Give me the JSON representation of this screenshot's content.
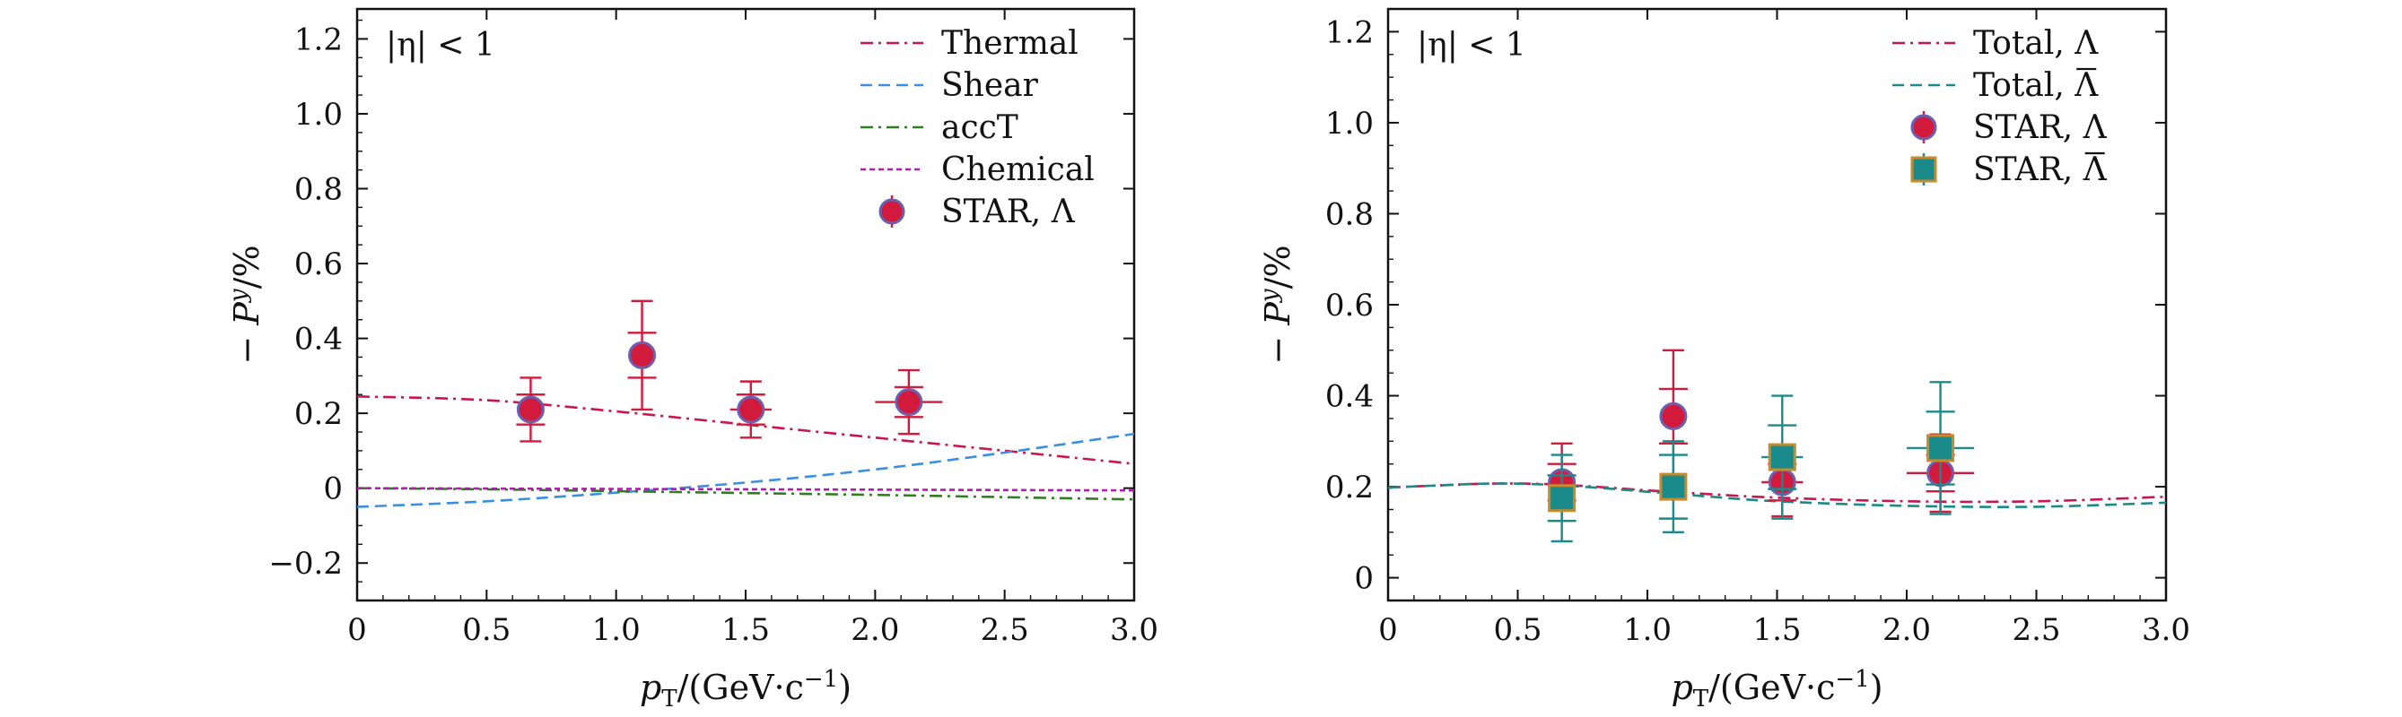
{
  "chart_data": [
    {
      "type": "line",
      "panel": "left",
      "xlabel": "p_T/(GeV·c^-1)",
      "ylabel": "-P^y/%",
      "annotation": "|η| < 1",
      "xlim": [
        0,
        3.0
      ],
      "ylim": [
        -0.3,
        1.28
      ],
      "xticks": [
        0,
        0.5,
        1.0,
        1.5,
        2.0,
        2.5,
        3.0
      ],
      "xtick_labels": [
        "0",
        "0.5",
        "1.0",
        "1.5",
        "2.0",
        "2.5",
        "3.0"
      ],
      "yticks": [
        -0.2,
        0,
        0.2,
        0.4,
        0.6,
        0.8,
        1.0,
        1.2
      ],
      "ytick_labels": [
        "−0.2",
        "0",
        "0.2",
        "0.4",
        "0.6",
        "0.8",
        "1.0",
        "1.2"
      ],
      "legend_position": "top-right",
      "grid": false,
      "series": [
        {
          "name": "Thermal",
          "kind": "line",
          "style": "dashdot",
          "color": "#c8174f",
          "x": [
            0,
            0.5,
            1.0,
            1.5,
            2.0,
            2.5,
            3.0
          ],
          "y": [
            0.245,
            0.235,
            0.205,
            0.17,
            0.135,
            0.1,
            0.065
          ]
        },
        {
          "name": "Shear",
          "kind": "line",
          "style": "dashed",
          "color": "#3a8fe0",
          "x": [
            0,
            0.5,
            1.0,
            1.5,
            2.0,
            2.5,
            3.0
          ],
          "y": [
            -0.05,
            -0.035,
            -0.012,
            0.015,
            0.05,
            0.095,
            0.145
          ]
        },
        {
          "name": "accT",
          "kind": "line",
          "style": "dashdot",
          "color": "#2e7d1e",
          "x": [
            0,
            0.5,
            1.0,
            1.5,
            2.0,
            2.5,
            3.0
          ],
          "y": [
            0,
            -0.003,
            -0.008,
            -0.013,
            -0.018,
            -0.024,
            -0.03
          ]
        },
        {
          "name": "Chemical",
          "kind": "line",
          "style": "dotted",
          "color": "#b01cb0",
          "x": [
            0,
            0.5,
            1.0,
            1.5,
            2.0,
            2.5,
            3.0
          ],
          "y": [
            0,
            -0.001,
            -0.002,
            -0.003,
            -0.004,
            -0.005,
            -0.006
          ]
        },
        {
          "name": "STAR, Λ",
          "kind": "points",
          "marker": "circle",
          "color": "#d21a3c",
          "edge": "#6b5fb0",
          "x": [
            0.67,
            1.1,
            1.52,
            2.13
          ],
          "y": [
            0.21,
            0.355,
            0.21,
            0.23
          ],
          "xerr": [
            0.0,
            0.0,
            0.08,
            0.13
          ],
          "yerr_stat": [
            0.04,
            0.06,
            0.04,
            0.04
          ],
          "yerr_sys": [
            0.085,
            0.145,
            0.075,
            0.085
          ]
        }
      ]
    },
    {
      "type": "line",
      "panel": "right",
      "xlabel": "p_T/(GeV·c^-1)",
      "ylabel": "-P^y/%",
      "annotation": "|η| < 1",
      "xlim": [
        0,
        3.0
      ],
      "ylim": [
        -0.05,
        1.25
      ],
      "xticks": [
        0,
        0.5,
        1.0,
        1.5,
        2.0,
        2.5,
        3.0
      ],
      "xtick_labels": [
        "0",
        "0.5",
        "1.0",
        "1.5",
        "2.0",
        "2.5",
        "3.0"
      ],
      "yticks": [
        0,
        0.2,
        0.4,
        0.6,
        0.8,
        1.0,
        1.2
      ],
      "ytick_labels": [
        "0",
        "0.2",
        "0.4",
        "0.6",
        "0.8",
        "1.0",
        "1.2"
      ],
      "legend_position": "top-right",
      "grid": false,
      "series": [
        {
          "name": "Total, Λ",
          "kind": "line",
          "style": "dashdot",
          "color": "#c8174f",
          "x": [
            0,
            0.2,
            0.4,
            0.6,
            0.8,
            1.0,
            1.2,
            1.5,
            2.0,
            2.5,
            3.0
          ],
          "y": [
            0.198,
            0.203,
            0.207,
            0.206,
            0.2,
            0.192,
            0.185,
            0.176,
            0.168,
            0.168,
            0.178
          ]
        },
        {
          "name": "Total, Λ̄",
          "kind": "line",
          "style": "dashed",
          "color": "#1a8a8a",
          "x": [
            0,
            0.2,
            0.4,
            0.6,
            0.8,
            1.0,
            1.2,
            1.5,
            2.0,
            2.5,
            3.0
          ],
          "y": [
            0.198,
            0.203,
            0.207,
            0.205,
            0.198,
            0.189,
            0.18,
            0.168,
            0.158,
            0.156,
            0.165
          ]
        },
        {
          "name": "STAR, Λ",
          "kind": "points",
          "marker": "circle",
          "color": "#d21a3c",
          "edge": "#6b5fb0",
          "x": [
            0.67,
            1.1,
            1.52,
            2.13
          ],
          "y": [
            0.21,
            0.355,
            0.21,
            0.23
          ],
          "xerr": [
            0.0,
            0.0,
            0.08,
            0.13
          ],
          "yerr_stat": [
            0.04,
            0.06,
            0.04,
            0.04
          ],
          "yerr_sys": [
            0.085,
            0.145,
            0.075,
            0.085
          ]
        },
        {
          "name": "STAR, Λ̄",
          "kind": "points",
          "marker": "square",
          "color": "#1a8a8a",
          "edge": "#c98a2a",
          "x": [
            0.67,
            1.1,
            1.52,
            2.13
          ],
          "y": [
            0.175,
            0.2,
            0.265,
            0.285
          ],
          "xerr": [
            0.0,
            0.0,
            0.08,
            0.13
          ],
          "yerr_stat": [
            0.05,
            0.07,
            0.07,
            0.08
          ],
          "yerr_sys": [
            0.095,
            0.1,
            0.135,
            0.145
          ]
        }
      ]
    }
  ]
}
